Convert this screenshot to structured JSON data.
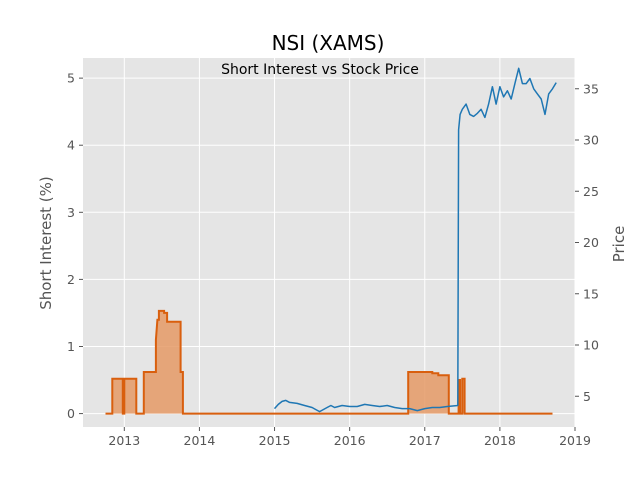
{
  "chart_data": {
    "type": "line",
    "title": "NSI (XAMS)",
    "subtitle": "Short Interest vs Stock Price",
    "ylabel_left": "Short Interest (%)",
    "ylabel_right": "Price",
    "xlim": [
      2012.45,
      2019.0
    ],
    "ylim_left": [
      -0.2,
      5.3
    ],
    "ylim_right": [
      2.0,
      38.0
    ],
    "xticks": [
      2013,
      2014,
      2015,
      2016,
      2017,
      2018,
      2019
    ],
    "yticks_left": [
      0,
      1,
      2,
      3,
      4,
      5
    ],
    "yticks_right": [
      5,
      10,
      15,
      20,
      25,
      30,
      35
    ],
    "grid": true,
    "colors": {
      "background": "#e5e5e5",
      "grid": "#ffffff",
      "price": "#1f77b4",
      "short_interest": "#d95f0e",
      "short_fill": "#e59a66"
    },
    "series": [
      {
        "axis": "left",
        "style": "step-area",
        "x": [
          2012.75,
          2012.84,
          2012.84,
          2012.98,
          2012.98,
          2013.0,
          2013.0,
          2013.16,
          2013.16,
          2013.26,
          2013.26,
          2013.42,
          2013.42,
          2013.44,
          2013.46,
          2013.46,
          2013.53,
          2013.53,
          2013.57,
          2013.57,
          2013.75,
          2013.75,
          2013.78,
          2013.78,
          2013.82,
          2015.0,
          2016.78,
          2016.78,
          2017.1,
          2017.1,
          2017.18,
          2017.18,
          2017.32,
          2017.32,
          2017.45,
          2017.45,
          2017.47,
          2017.47,
          2017.5,
          2017.5,
          2017.53,
          2017.53,
          2018.0,
          2018.7
        ],
        "y": [
          0.0,
          0.0,
          0.52,
          0.52,
          0.0,
          0.0,
          0.52,
          0.52,
          0.0,
          0.0,
          0.62,
          0.62,
          1.1,
          1.4,
          1.4,
          1.53,
          1.53,
          1.5,
          1.5,
          1.37,
          1.37,
          0.62,
          0.62,
          0.0,
          0.0,
          0.0,
          0.0,
          0.62,
          0.62,
          0.6,
          0.6,
          0.57,
          0.57,
          0.0,
          0.0,
          0.5,
          0.5,
          0.0,
          0.0,
          0.52,
          0.52,
          0.0,
          0.0,
          0.0
        ]
      },
      {
        "axis": "right",
        "style": "line",
        "x": [
          2015.0,
          2015.05,
          2015.1,
          2015.15,
          2015.2,
          2015.3,
          2015.4,
          2015.5,
          2015.55,
          2015.6,
          2015.7,
          2015.75,
          2015.8,
          2015.9,
          2016.0,
          2016.1,
          2016.2,
          2016.3,
          2016.4,
          2016.5,
          2016.6,
          2016.7,
          2016.8,
          2016.9,
          2017.0,
          2017.1,
          2017.2,
          2017.3,
          2017.44,
          2017.45,
          2017.47,
          2017.5,
          2017.55,
          2017.6,
          2017.65,
          2017.7,
          2017.75,
          2017.8,
          2017.85,
          2017.9,
          2017.95,
          2018.0,
          2018.05,
          2018.1,
          2018.15,
          2018.2,
          2018.25,
          2018.3,
          2018.35,
          2018.4,
          2018.45,
          2018.5,
          2018.55,
          2018.6,
          2018.65,
          2018.7,
          2018.75
        ],
        "y": [
          3.8,
          4.2,
          4.5,
          4.6,
          4.4,
          4.3,
          4.1,
          3.9,
          3.7,
          3.5,
          3.9,
          4.1,
          3.9,
          4.1,
          4.0,
          4.0,
          4.2,
          4.1,
          4.0,
          4.1,
          3.9,
          3.8,
          3.8,
          3.6,
          3.8,
          3.9,
          3.9,
          4.0,
          4.1,
          31.0,
          32.5,
          33.0,
          33.5,
          32.5,
          32.3,
          32.6,
          33.0,
          32.2,
          33.5,
          35.2,
          33.5,
          35.2,
          34.2,
          34.8,
          34.0,
          35.5,
          37.0,
          35.5,
          35.5,
          36.0,
          35.0,
          34.5,
          34.0,
          32.5,
          34.5,
          35.0,
          35.6
        ]
      }
    ]
  }
}
